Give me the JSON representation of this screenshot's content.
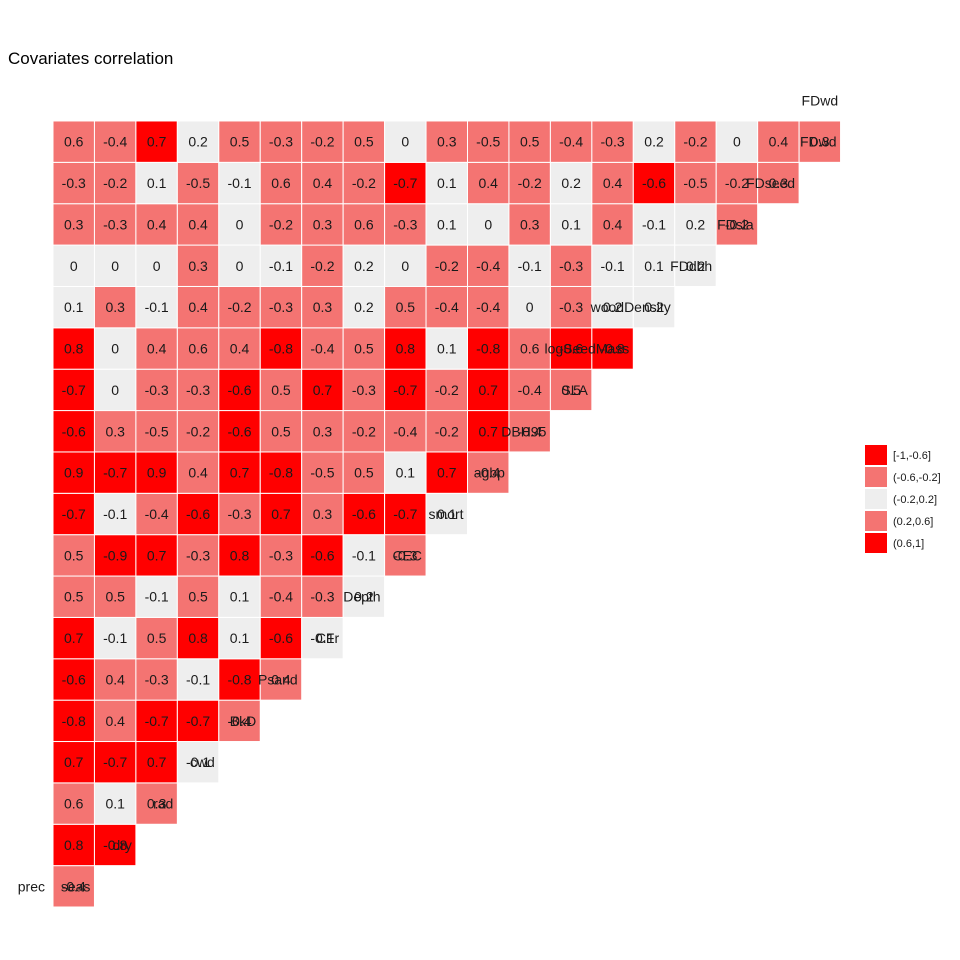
{
  "chart_data": {
    "type": "heatmap",
    "title": "Covariates correlation",
    "variables": [
      "prec",
      "seas",
      "dry",
      "rad",
      "cwd",
      "BkD",
      "Psand",
      "CFr",
      "Depth",
      "CEC",
      "smort",
      "agbp",
      "DBH95",
      "SLA",
      "logSeedMass",
      "woodDensity",
      "FDdbh",
      "FDsla",
      "FDseed",
      "FDwd"
    ],
    "rows": [
      {
        "name": "seas",
        "values": [
          "-0.4"
        ]
      },
      {
        "name": "dry",
        "values": [
          "0.8",
          "-0.8"
        ]
      },
      {
        "name": "rad",
        "values": [
          "0.6",
          "0.1",
          "0.3"
        ]
      },
      {
        "name": "cwd",
        "values": [
          "0.7",
          "-0.7",
          "0.7",
          "-0.1"
        ]
      },
      {
        "name": "BkD",
        "values": [
          "-0.8",
          "0.4",
          "-0.7",
          "-0.7",
          "-0.4"
        ]
      },
      {
        "name": "Psand",
        "values": [
          "-0.6",
          "0.4",
          "-0.3",
          "-0.1",
          "-0.8",
          "0.4"
        ]
      },
      {
        "name": "CFr",
        "values": [
          "0.7",
          "-0.1",
          "0.5",
          "0.8",
          "0.1",
          "-0.6",
          "-0.1"
        ]
      },
      {
        "name": "Depth",
        "values": [
          "0.5",
          "0.5",
          "-0.1",
          "0.5",
          "0.1",
          "-0.4",
          "-0.3",
          "0.2"
        ]
      },
      {
        "name": "CEC",
        "values": [
          "0.5",
          "-0.9",
          "0.7",
          "-0.3",
          "0.8",
          "-0.3",
          "-0.6",
          "-0.1",
          "-0.3"
        ]
      },
      {
        "name": "smort",
        "values": [
          "-0.7",
          "-0.1",
          "-0.4",
          "-0.6",
          "-0.3",
          "0.7",
          "0.3",
          "-0.6",
          "-0.7",
          "0.1"
        ]
      },
      {
        "name": "agbp",
        "values": [
          "0.9",
          "-0.7",
          "0.9",
          "0.4",
          "0.7",
          "-0.8",
          "-0.5",
          "0.5",
          "0.1",
          "0.7",
          "-0.4"
        ]
      },
      {
        "name": "DBH95",
        "values": [
          "-0.6",
          "0.3",
          "-0.5",
          "-0.2",
          "-0.6",
          "0.5",
          "0.3",
          "-0.2",
          "-0.4",
          "-0.2",
          "0.7",
          "-0.4"
        ]
      },
      {
        "name": "SLA",
        "values": [
          "-0.7",
          "0",
          "-0.3",
          "-0.3",
          "-0.6",
          "0.5",
          "0.7",
          "-0.3",
          "-0.7",
          "-0.2",
          "0.7",
          "-0.4",
          "0.5"
        ]
      },
      {
        "name": "logSeedMass",
        "values": [
          "0.8",
          "0",
          "0.4",
          "0.6",
          "0.4",
          "-0.8",
          "-0.4",
          "0.5",
          "0.8",
          "0.1",
          "-0.8",
          "0.6",
          "-0.6",
          "-0.8"
        ]
      },
      {
        "name": "woodDensity",
        "values": [
          "0.1",
          "0.3",
          "-0.1",
          "0.4",
          "-0.2",
          "-0.3",
          "0.3",
          "0.2",
          "0.5",
          "-0.4",
          "-0.4",
          "0",
          "-0.3",
          "0.2",
          "0.2"
        ]
      },
      {
        "name": "FDdbh",
        "values": [
          "0",
          "0",
          "0",
          "0.3",
          "0",
          "-0.1",
          "-0.2",
          "0.2",
          "0",
          "-0.2",
          "-0.4",
          "-0.1",
          "-0.3",
          "-0.1",
          "0.1",
          "0.2"
        ]
      },
      {
        "name": "FDsla",
        "values": [
          "0.3",
          "-0.3",
          "0.4",
          "0.4",
          "0",
          "-0.2",
          "0.3",
          "0.6",
          "-0.3",
          "0.1",
          "0",
          "0.3",
          "0.1",
          "0.4",
          "-0.1",
          "0.2",
          "-0.2"
        ]
      },
      {
        "name": "FDseed",
        "values": [
          "-0.3",
          "-0.2",
          "0.1",
          "-0.5",
          "-0.1",
          "0.6",
          "0.4",
          "-0.2",
          "-0.7",
          "0.1",
          "0.4",
          "-0.2",
          "0.2",
          "0.4",
          "-0.6",
          "-0.5",
          "-0.2",
          "0.3"
        ]
      },
      {
        "name": "FDwd",
        "values": [
          "0.6",
          "-0.4",
          "0.7",
          "0.2",
          "0.5",
          "-0.3",
          "-0.2",
          "0.5",
          "0",
          "0.3",
          "-0.5",
          "0.5",
          "-0.4",
          "-0.3",
          "0.2",
          "-0.2",
          "0",
          "0.4",
          "0.3"
        ]
      }
    ],
    "legend": {
      "position": "right",
      "bins": [
        {
          "label": "[-1,-0.6]",
          "color": "#ff0000"
        },
        {
          "label": "(-0.6,-0.2]",
          "color": "#f47472"
        },
        {
          "label": "(-0.2,0.2]",
          "color": "#eeeeee"
        },
        {
          "label": "(0.2,0.6]",
          "color": "#f47472"
        },
        {
          "label": "(0.6,1]",
          "color": "#ff0000"
        }
      ]
    },
    "grid": false
  }
}
